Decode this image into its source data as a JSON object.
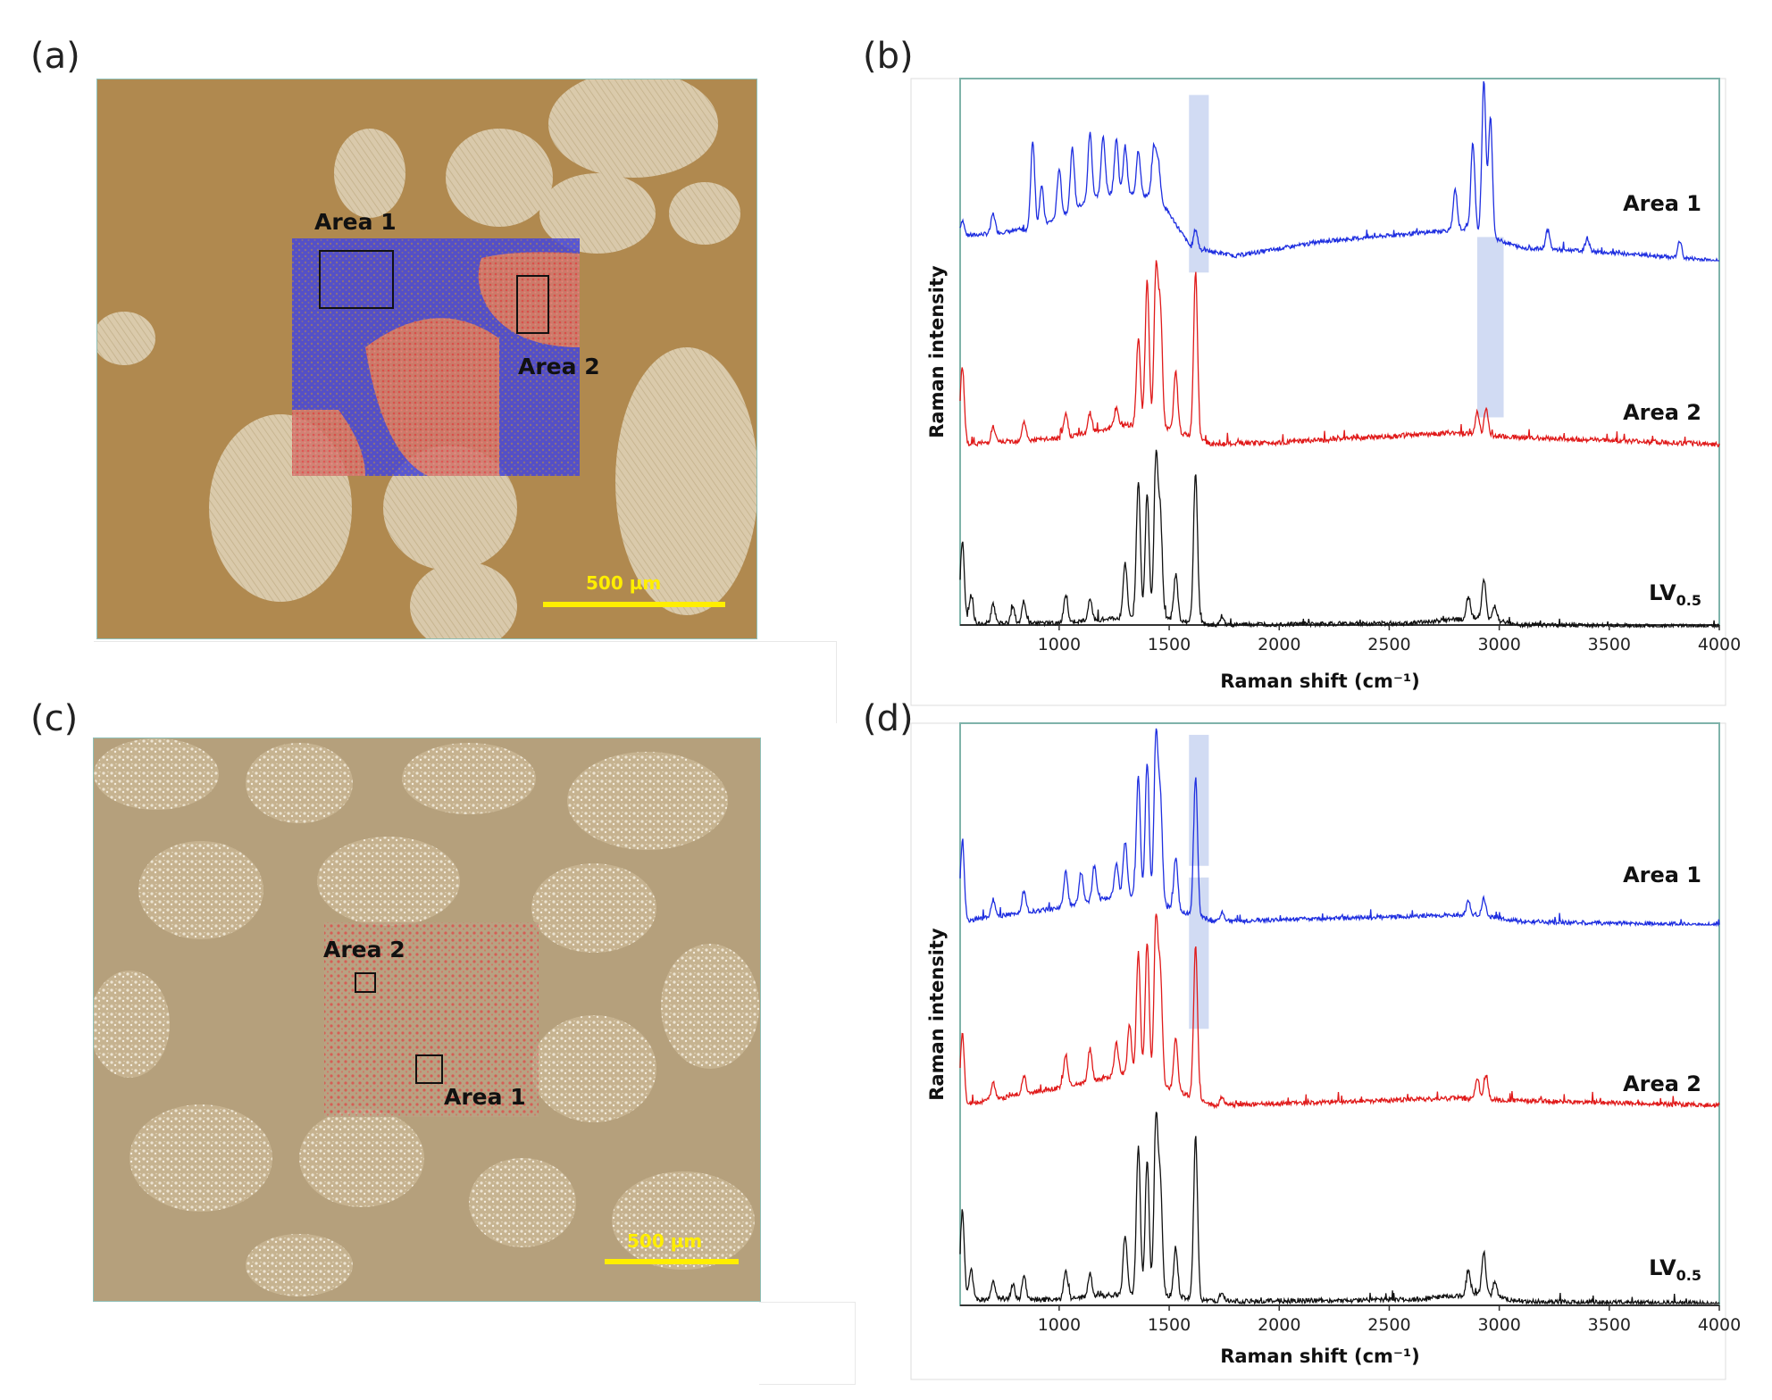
{
  "panels": {
    "a": "(a)",
    "b": "(b)",
    "c": "(c)",
    "d": "(d)"
  },
  "micrograph_a": {
    "area1_label": "Area 1",
    "area2_label": "Area 2",
    "scale_label": "500 µm",
    "colors": {
      "background": "#b0894f",
      "grain": "#d9cbb0",
      "map_blue": "#3a3ad0",
      "map_red": "#e05a5a"
    }
  },
  "micrograph_c": {
    "area1_label": "Area 1",
    "area2_label": "Area 2",
    "scale_label": "500 µm",
    "colors": {
      "background": "#b5a07c",
      "grain": "#efe6d2",
      "map_red": "#e04848"
    }
  },
  "chart_data": [
    {
      "panel": "b",
      "type": "line",
      "xlabel": "Raman shift (cm⁻¹)",
      "ylabel": "Raman intensity",
      "xlim": [
        550,
        4000
      ],
      "xticks": [
        1000,
        1500,
        2000,
        2500,
        3000,
        3500,
        4000
      ],
      "highlight_bands": [
        [
          1590,
          1680
        ],
        [
          2900,
          3020
        ]
      ],
      "series": [
        {
          "name": "Area 1",
          "color": "#1f2fe0",
          "peaks": [
            [
              560,
              0.1
            ],
            [
              700,
              0.12
            ],
            [
              880,
              0.55
            ],
            [
              920,
              0.25
            ],
            [
              1000,
              0.3
            ],
            [
              1060,
              0.38
            ],
            [
              1140,
              0.42
            ],
            [
              1200,
              0.35
            ],
            [
              1260,
              0.34
            ],
            [
              1300,
              0.3
            ],
            [
              1360,
              0.28
            ],
            [
              1430,
              0.3
            ],
            [
              1450,
              0.22
            ],
            [
              1620,
              0.12
            ],
            [
              2800,
              0.25
            ],
            [
              2880,
              0.55
            ],
            [
              2930,
              0.95
            ],
            [
              2960,
              0.75
            ],
            [
              3220,
              0.12
            ],
            [
              3400,
              0.08
            ],
            [
              3820,
              0.1
            ]
          ],
          "baseline": [
            [
              550,
              0.15
            ],
            [
              900,
              0.2
            ],
            [
              1200,
              0.42
            ],
            [
              1450,
              0.4
            ],
            [
              1600,
              0.08
            ],
            [
              1800,
              0.03
            ],
            [
              2200,
              0.12
            ],
            [
              2700,
              0.18
            ],
            [
              2850,
              0.2
            ],
            [
              3100,
              0.08
            ],
            [
              3400,
              0.06
            ],
            [
              4000,
              0.0
            ]
          ]
        },
        {
          "name": "Area 2",
          "color": "#e01a1a",
          "peaks": [
            [
              560,
              0.4
            ],
            [
              700,
              0.08
            ],
            [
              840,
              0.1
            ],
            [
              1030,
              0.12
            ],
            [
              1140,
              0.1
            ],
            [
              1260,
              0.1
            ],
            [
              1360,
              0.45
            ],
            [
              1400,
              0.75
            ],
            [
              1440,
              0.8
            ],
            [
              1460,
              0.6
            ],
            [
              1530,
              0.3
            ],
            [
              1620,
              0.85
            ],
            [
              2900,
              0.12
            ],
            [
              2940,
              0.14
            ]
          ],
          "baseline": [
            [
              550,
              0.02
            ],
            [
              1000,
              0.05
            ],
            [
              1300,
              0.12
            ],
            [
              1500,
              0.1
            ],
            [
              1700,
              0.02
            ],
            [
              2000,
              0.03
            ],
            [
              2800,
              0.08
            ],
            [
              3000,
              0.06
            ],
            [
              4000,
              0.02
            ]
          ]
        },
        {
          "name": "LV0.5",
          "name_display": "LV",
          "name_sub": "0.5",
          "color": "#111111",
          "peaks": [
            [
              560,
              0.45
            ],
            [
              600,
              0.15
            ],
            [
              700,
              0.1
            ],
            [
              790,
              0.08
            ],
            [
              840,
              0.12
            ],
            [
              1030,
              0.15
            ],
            [
              1140,
              0.12
            ],
            [
              1300,
              0.3
            ],
            [
              1360,
              0.75
            ],
            [
              1400,
              0.68
            ],
            [
              1440,
              0.88
            ],
            [
              1460,
              0.55
            ],
            [
              1530,
              0.25
            ],
            [
              1620,
              0.82
            ],
            [
              1740,
              0.05
            ],
            [
              2860,
              0.12
            ],
            [
              2930,
              0.22
            ],
            [
              2980,
              0.08
            ]
          ],
          "baseline": [
            [
              550,
              0.02
            ],
            [
              1000,
              0.02
            ],
            [
              1300,
              0.05
            ],
            [
              1500,
              0.04
            ],
            [
              1700,
              0.01
            ],
            [
              2600,
              0.02
            ],
            [
              2900,
              0.05
            ],
            [
              3100,
              0.01
            ],
            [
              4000,
              0.0
            ]
          ]
        }
      ]
    },
    {
      "panel": "d",
      "type": "line",
      "xlabel": "Raman shift (cm⁻¹)",
      "ylabel": "Raman intensity",
      "xlim": [
        550,
        4000
      ],
      "xticks": [
        1000,
        1500,
        2000,
        2500,
        3000,
        3500,
        4000
      ],
      "highlight_bands": [
        [
          1590,
          1680
        ],
        [
          1590,
          1680
        ]
      ],
      "series": [
        {
          "name": "Area 1",
          "color": "#1f2fe0",
          "peaks": [
            [
              560,
              0.45
            ],
            [
              700,
              0.1
            ],
            [
              840,
              0.12
            ],
            [
              1030,
              0.2
            ],
            [
              1100,
              0.18
            ],
            [
              1160,
              0.2
            ],
            [
              1260,
              0.18
            ],
            [
              1300,
              0.3
            ],
            [
              1360,
              0.7
            ],
            [
              1400,
              0.8
            ],
            [
              1440,
              0.95
            ],
            [
              1460,
              0.6
            ],
            [
              1530,
              0.3
            ],
            [
              1620,
              0.8
            ],
            [
              1740,
              0.05
            ],
            [
              2860,
              0.08
            ],
            [
              2930,
              0.1
            ]
          ],
          "baseline": [
            [
              550,
              0.02
            ],
            [
              1000,
              0.1
            ],
            [
              1300,
              0.18
            ],
            [
              1500,
              0.1
            ],
            [
              1700,
              0.02
            ],
            [
              2000,
              0.03
            ],
            [
              2900,
              0.06
            ],
            [
              3100,
              0.02
            ],
            [
              4000,
              0.0
            ]
          ]
        },
        {
          "name": "Area 2",
          "color": "#e01a1a",
          "peaks": [
            [
              560,
              0.4
            ],
            [
              700,
              0.1
            ],
            [
              840,
              0.1
            ],
            [
              1030,
              0.18
            ],
            [
              1140,
              0.18
            ],
            [
              1260,
              0.18
            ],
            [
              1320,
              0.28
            ],
            [
              1360,
              0.7
            ],
            [
              1400,
              0.78
            ],
            [
              1440,
              0.9
            ],
            [
              1460,
              0.6
            ],
            [
              1530,
              0.3
            ],
            [
              1620,
              0.85
            ],
            [
              1740,
              0.05
            ],
            [
              2900,
              0.12
            ],
            [
              2940,
              0.14
            ]
          ],
          "baseline": [
            [
              550,
              0.02
            ],
            [
              1000,
              0.12
            ],
            [
              1300,
              0.2
            ],
            [
              1500,
              0.12
            ],
            [
              1700,
              0.02
            ],
            [
              2000,
              0.03
            ],
            [
              2800,
              0.06
            ],
            [
              3000,
              0.05
            ],
            [
              4000,
              0.02
            ]
          ]
        },
        {
          "name": "LV0.5",
          "name_display": "LV",
          "name_sub": "0.5",
          "color": "#111111",
          "peaks": [
            [
              560,
              0.45
            ],
            [
              600,
              0.15
            ],
            [
              700,
              0.1
            ],
            [
              790,
              0.08
            ],
            [
              840,
              0.12
            ],
            [
              1030,
              0.15
            ],
            [
              1140,
              0.12
            ],
            [
              1300,
              0.3
            ],
            [
              1360,
              0.75
            ],
            [
              1400,
              0.68
            ],
            [
              1440,
              0.88
            ],
            [
              1460,
              0.55
            ],
            [
              1530,
              0.25
            ],
            [
              1620,
              0.82
            ],
            [
              1740,
              0.05
            ],
            [
              2860,
              0.12
            ],
            [
              2930,
              0.22
            ],
            [
              2980,
              0.08
            ]
          ],
          "baseline": [
            [
              550,
              0.02
            ],
            [
              1000,
              0.02
            ],
            [
              1300,
              0.05
            ],
            [
              1500,
              0.04
            ],
            [
              1700,
              0.01
            ],
            [
              2600,
              0.02
            ],
            [
              2900,
              0.05
            ],
            [
              3100,
              0.01
            ],
            [
              4000,
              0.0
            ]
          ]
        }
      ]
    }
  ]
}
